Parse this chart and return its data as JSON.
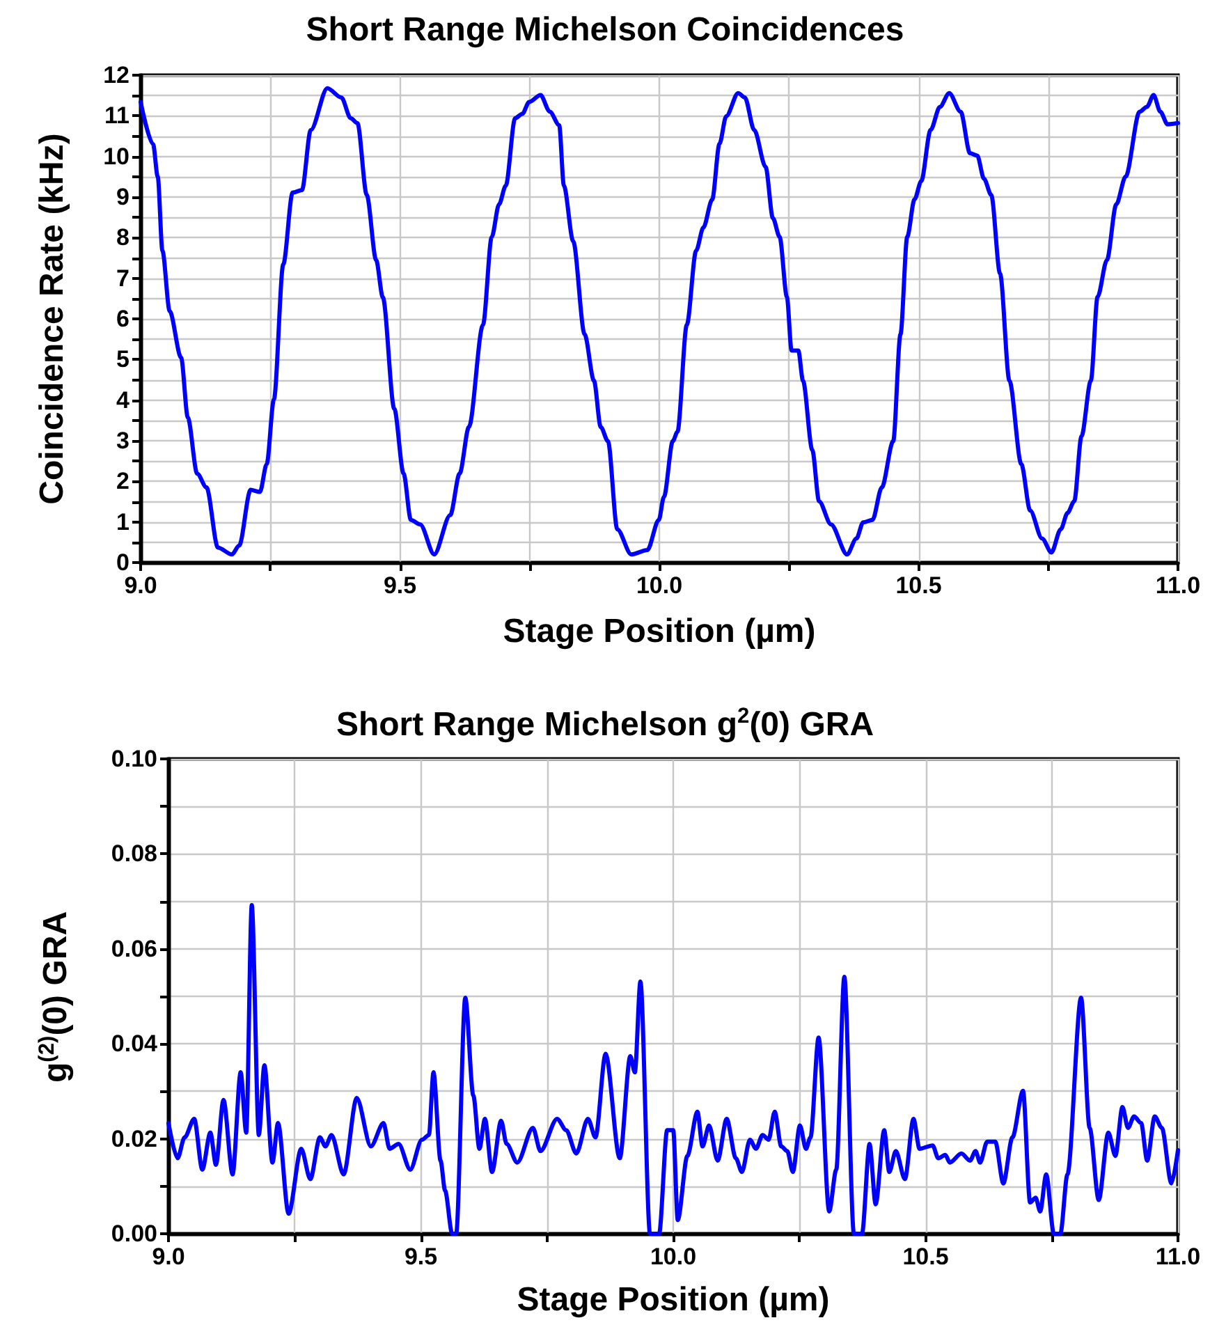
{
  "chart_data": [
    {
      "type": "line",
      "title": "Short Range Michelson Coincidences",
      "xlabel": "Stage Position (µm)",
      "ylabel": "Coincidence Rate (kHz)",
      "grid": true,
      "marker": "none",
      "line_style": "solid",
      "xlim": [
        9,
        11
      ],
      "xticks": [
        {
          "value": 9,
          "label": "9.0"
        },
        {
          "value": 9.25,
          "label": null
        },
        {
          "value": 9.5,
          "label": "9.5"
        },
        {
          "value": 9.75,
          "label": null
        },
        {
          "value": 10,
          "label": "10.0"
        },
        {
          "value": 10.25,
          "label": null
        },
        {
          "value": 10.5,
          "label": "10.5"
        },
        {
          "value": 10.75,
          "label": null
        },
        {
          "value": 11,
          "label": "11.0"
        }
      ],
      "ylim": [
        0,
        12
      ],
      "yticks": [
        0,
        {
          "value": 0.5,
          "label": null
        },
        1,
        {
          "value": 1.5,
          "label": null
        },
        2,
        {
          "value": 2.5,
          "label": null
        },
        3,
        {
          "value": 3.5,
          "label": null
        },
        4,
        {
          "value": 4.5,
          "label": null
        },
        5,
        {
          "value": 5.5,
          "label": null
        },
        6,
        {
          "value": 6.5,
          "label": null
        },
        7,
        {
          "value": 7.5,
          "label": null
        },
        8,
        {
          "value": 8.5,
          "label": null
        },
        9,
        {
          "value": 9.5,
          "label": null
        },
        10,
        {
          "value": 10.5,
          "label": null
        },
        11,
        {
          "value": 11.5,
          "label": null
        },
        12
      ],
      "series": [
        {
          "color": "#0000ff",
          "x": [
            9.0,
            9.024,
            9.033,
            9.042,
            9.056,
            9.078,
            9.091,
            9.109,
            9.127,
            9.149,
            9.176,
            9.19,
            9.212,
            9.23,
            9.243,
            9.257,
            9.275,
            9.293,
            9.311,
            9.328,
            9.36,
            9.387,
            9.405,
            9.418,
            9.436,
            9.454,
            9.467,
            9.489,
            9.507,
            9.521,
            9.539,
            9.566,
            9.597,
            9.615,
            9.633,
            9.66,
            9.677,
            9.691,
            9.704,
            9.722,
            9.736,
            9.749,
            9.771,
            9.789,
            9.807,
            9.816,
            9.834,
            9.856,
            9.874,
            9.887,
            9.901,
            9.919,
            9.946,
            9.977,
            9.999,
            10.009,
            10.026,
            10.035,
            10.053,
            10.071,
            10.085,
            10.102,
            10.116,
            10.129,
            10.152,
            10.165,
            10.183,
            10.205,
            10.219,
            10.232,
            10.246,
            10.255,
            10.268,
            10.277,
            10.295,
            10.308,
            10.331,
            10.362,
            10.38,
            10.393,
            10.411,
            10.429,
            10.451,
            10.465,
            10.478,
            10.492,
            10.505,
            10.523,
            10.541,
            10.559,
            10.581,
            10.599,
            10.613,
            10.626,
            10.64,
            10.657,
            10.675,
            10.698,
            10.715,
            10.738,
            10.756,
            10.774,
            10.787,
            10.8,
            10.814,
            10.832,
            10.845,
            10.863,
            10.881,
            10.899,
            10.926,
            10.94,
            10.953,
            10.966,
            10.98,
            11.0
          ],
          "values": [
            11.34,
            10.3,
            9.5,
            7.68,
            6.19,
            5.05,
            3.57,
            2.19,
            1.85,
            0.37,
            0.2,
            0.42,
            1.79,
            1.74,
            2.42,
            4.02,
            7.34,
            9.11,
            9.17,
            10.65,
            11.68,
            11.45,
            10.94,
            10.82,
            9.05,
            7.45,
            6.53,
            3.79,
            2.19,
            1.05,
            0.94,
            0.2,
            1.17,
            2.19,
            3.34,
            5.85,
            8.02,
            8.82,
            9.28,
            10.94,
            11.05,
            11.34,
            11.51,
            11.1,
            10.77,
            9.28,
            7.91,
            5.62,
            4.48,
            3.34,
            2.99,
            0.82,
            0.2,
            0.31,
            1.05,
            1.62,
            2.99,
            3.22,
            5.85,
            7.68,
            8.25,
            8.94,
            10.31,
            10.99,
            11.56,
            11.45,
            10.65,
            9.74,
            8.48,
            8.02,
            6.54,
            5.22,
            5.22,
            4.48,
            2.77,
            1.51,
            0.94,
            0.2,
            0.59,
            0.99,
            1.05,
            1.85,
            2.99,
            5.62,
            8.02,
            8.94,
            9.39,
            10.65,
            11.22,
            11.56,
            11.1,
            10.08,
            10.02,
            9.45,
            9.05,
            7.11,
            4.48,
            2.42,
            1.28,
            0.59,
            0.25,
            0.82,
            1.22,
            1.51,
            3.11,
            4.48,
            6.54,
            7.45,
            8.82,
            9.5,
            11.1,
            11.22,
            11.51,
            11.1,
            10.79,
            10.82
          ]
        }
      ]
    },
    {
      "type": "line",
      "title": "Short Range Michelson g$^{2}$(0) GRA",
      "xlabel": "Stage Position (µm)",
      "ylabel": "g$^{(2)}$(0) GRA",
      "grid": true,
      "marker": "none",
      "line_style": "solid",
      "xlim": [
        9,
        11
      ],
      "xticks": [
        {
          "value": 9,
          "label": "9.0"
        },
        {
          "value": 9.25,
          "label": null
        },
        {
          "value": 9.5,
          "label": "9.5"
        },
        {
          "value": 9.75,
          "label": null
        },
        {
          "value": 10,
          "label": "10.0"
        },
        {
          "value": 10.25,
          "label": null
        },
        {
          "value": 10.5,
          "label": "10.5"
        },
        {
          "value": 10.75,
          "label": null
        },
        {
          "value": 11,
          "label": "11.0"
        }
      ],
      "ylim": [
        0,
        0.1
      ],
      "yticks": [
        {
          "value": 0,
          "label": "0.00"
        },
        {
          "value": 0.01,
          "label": null
        },
        {
          "value": 0.02,
          "label": "0.02"
        },
        {
          "value": 0.03,
          "label": null
        },
        {
          "value": 0.04,
          "label": "0.04"
        },
        {
          "value": 0.05,
          "label": null
        },
        {
          "value": 0.06,
          "label": "0.06"
        },
        {
          "value": 0.07,
          "label": null
        },
        {
          "value": 0.08,
          "label": "0.08"
        },
        {
          "value": 0.09,
          "label": null
        },
        {
          "value": 0.1,
          "label": "0.10"
        }
      ],
      "series": [
        {
          "color": "#0000ff",
          "x": [
            9.0,
            9.018,
            9.032,
            9.051,
            9.067,
            9.083,
            9.094,
            9.109,
            9.127,
            9.143,
            9.154,
            9.165,
            9.179,
            9.19,
            9.206,
            9.217,
            9.238,
            9.263,
            9.281,
            9.3,
            9.311,
            9.323,
            9.347,
            9.373,
            9.401,
            9.426,
            9.438,
            9.456,
            9.479,
            9.502,
            9.516,
            9.525,
            9.539,
            9.548,
            9.562,
            9.57,
            9.588,
            9.604,
            9.616,
            9.627,
            9.641,
            9.659,
            9.67,
            9.691,
            9.722,
            9.737,
            9.77,
            9.788,
            9.808,
            9.831,
            9.846,
            9.866,
            9.894,
            9.915,
            9.924,
            9.935,
            9.954,
            9.972,
            9.988,
            10.0,
            10.009,
            10.028,
            10.048,
            10.058,
            10.071,
            10.088,
            10.106,
            10.124,
            10.136,
            10.152,
            10.164,
            10.177,
            10.189,
            10.201,
            10.214,
            10.226,
            10.237,
            10.251,
            10.263,
            10.272,
            10.288,
            10.309,
            10.323,
            10.339,
            10.358,
            10.374,
            10.389,
            10.401,
            10.418,
            10.428,
            10.441,
            10.459,
            10.476,
            10.488,
            10.514,
            10.525,
            10.539,
            10.548,
            10.571,
            10.588,
            10.599,
            10.608,
            10.622,
            10.638,
            10.654,
            10.672,
            10.693,
            10.707,
            10.718,
            10.727,
            10.739,
            10.754,
            10.767,
            10.781,
            10.808,
            10.825,
            10.843,
            10.862,
            10.876,
            10.89,
            10.901,
            10.913,
            10.927,
            10.939,
            10.954,
            10.968,
            10.987,
            11.0
          ],
          "values": [
            0.0233,
            0.0159,
            0.0203,
            0.0242,
            0.0135,
            0.0213,
            0.0145,
            0.0282,
            0.0125,
            0.034,
            0.0213,
            0.0692,
            0.0208,
            0.0355,
            0.015,
            0.0233,
            0.0042,
            0.0179,
            0.0115,
            0.0203,
            0.0184,
            0.0208,
            0.0125,
            0.0286,
            0.0184,
            0.0233,
            0.0179,
            0.0189,
            0.0135,
            0.0198,
            0.0208,
            0.034,
            0.0154,
            0.0091,
            0,
            0,
            0.0497,
            0.0291,
            0.0179,
            0.0242,
            0.013,
            0.0238,
            0.0189,
            0.015,
            0.0223,
            0.0174,
            0.0242,
            0.0218,
            0.0169,
            0.0242,
            0.0203,
            0.0379,
            0.0159,
            0.0374,
            0.034,
            0.0531,
            0,
            0,
            0.0218,
            0.0218,
            0.0029,
            0.0164,
            0.0257,
            0.0184,
            0.0228,
            0.0154,
            0.0242,
            0.0159,
            0.013,
            0.0198,
            0.0179,
            0.0208,
            0.0198,
            0.0257,
            0.0184,
            0.0174,
            0.013,
            0.0228,
            0.0179,
            0.0203,
            0.0413,
            0.0047,
            0.0135,
            0.0541,
            0,
            0,
            0.0189,
            0.0062,
            0.0218,
            0.013,
            0.0174,
            0.0115,
            0.0242,
            0.0179,
            0.0186,
            0.0159,
            0.0166,
            0.015,
            0.0169,
            0.0154,
            0.0174,
            0.015,
            0.0194,
            0.0194,
            0.0106,
            0.0203,
            0.0301,
            0.0066,
            0.0076,
            0.0047,
            0.0125,
            0,
            0,
            0.0125,
            0.0497,
            0.0223,
            0.0071,
            0.0213,
            0.0164,
            0.0267,
            0.0223,
            0.0247,
            0.0233,
            0.0154,
            0.0247,
            0.0223,
            0.0106,
            0.0176
          ]
        }
      ]
    }
  ]
}
